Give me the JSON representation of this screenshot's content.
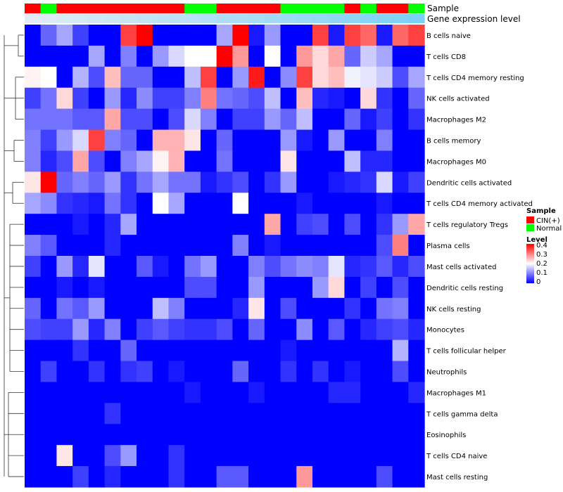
{
  "chart_data": {
    "type": "heatmap",
    "annotation_tracks": {
      "sample_label": "Sample",
      "gene_label": "Gene expression level"
    },
    "row_labels": [
      "B cells naive",
      "T cells CD8",
      "T cells CD4 memory resting",
      "NK cells activated",
      "Macrophages M2",
      "B cells memory",
      "Macrophages M0",
      "Dendritic cells activated",
      "T cells CD4 memory activated",
      "T cells regulatory  Tregs",
      "Plasma cells",
      "Mast cells activated",
      "Dendritic cells resting",
      "NK cells resting",
      "Monocytes",
      "T cells follicular helper",
      "Neutrophils",
      "Macrophages M1",
      "T cells gamma delta",
      "Eosinophils",
      "T cells CD4 naive",
      "Mast cells resting"
    ],
    "sample_groups": [
      "CIN",
      "Normal",
      "CIN",
      "CIN",
      "CIN",
      "CIN",
      "CIN",
      "CIN",
      "CIN",
      "CIN",
      "Normal",
      "Normal",
      "CIN",
      "CIN",
      "CIN",
      "CIN",
      "Normal",
      "Normal",
      "Normal",
      "Normal",
      "CIN",
      "Normal",
      "CIN",
      "CIN",
      "Normal"
    ],
    "gene_expression_level": [
      0.05,
      0.08,
      0.11,
      0.14,
      0.17,
      0.2,
      0.23,
      0.26,
      0.29,
      0.32,
      0.35,
      0.38,
      0.41,
      0.44,
      0.47,
      0.5,
      0.53,
      0.56,
      0.59,
      0.62,
      0.65,
      0.68,
      0.71,
      0.74,
      0.77
    ],
    "values": [
      [
        0.0,
        0.08,
        0.13,
        0.05,
        0.0,
        0.0,
        0.35,
        0.4,
        0.0,
        0.0,
        0.0,
        0.0,
        0.13,
        0.4,
        0.02,
        0.12,
        0.0,
        0.0,
        0.35,
        0.02,
        0.35,
        0.32,
        0.02,
        0.32,
        0.35
      ],
      [
        0.0,
        0.0,
        0.0,
        0.0,
        0.13,
        0.0,
        0.1,
        0.0,
        0.12,
        0.17,
        0.2,
        0.2,
        0.4,
        0.28,
        0.0,
        0.2,
        0.0,
        0.28,
        0.23,
        0.27,
        0.08,
        0.16,
        0.13,
        0.0,
        0.0
      ],
      [
        0.21,
        0.2,
        0.0,
        0.14,
        0.06,
        0.25,
        0.08,
        0.08,
        0.0,
        0.0,
        0.15,
        0.35,
        0.0,
        0.12,
        0.38,
        0.0,
        0.11,
        0.35,
        0.23,
        0.25,
        0.19,
        0.18,
        0.16,
        0.06,
        0.13
      ],
      [
        0.05,
        0.09,
        0.23,
        0.05,
        0.0,
        0.12,
        0.03,
        0.11,
        0.05,
        0.05,
        0.1,
        0.3,
        0.09,
        0.08,
        0.06,
        0.15,
        0.0,
        0.25,
        0.03,
        0.02,
        0.0,
        0.23,
        0.04,
        0.0,
        0.08
      ],
      [
        0.09,
        0.09,
        0.09,
        0.07,
        0.07,
        0.27,
        0.06,
        0.06,
        0.0,
        0.06,
        0.17,
        0.1,
        0.0,
        0.05,
        0.05,
        0.12,
        0.08,
        0.15,
        0.0,
        0.0,
        0.08,
        0.02,
        0.05,
        0.0,
        0.04
      ],
      [
        0.1,
        0.05,
        0.12,
        0.17,
        0.35,
        0.1,
        0.08,
        0.0,
        0.26,
        0.26,
        0.22,
        0.0,
        0.08,
        0.0,
        0.0,
        0.0,
        0.12,
        0.02,
        0.0,
        0.12,
        0.0,
        0.0,
        0.1,
        0.0,
        0.0
      ],
      [
        0.1,
        0.03,
        0.06,
        0.27,
        0.06,
        0.0,
        0.1,
        0.13,
        0.21,
        0.26,
        0.0,
        0.0,
        0.09,
        0.0,
        0.0,
        0.0,
        0.22,
        0.0,
        0.0,
        0.0,
        0.15,
        0.03,
        0.03,
        0.0,
        0.0
      ],
      [
        0.22,
        0.4,
        0.08,
        0.1,
        0.08,
        0.12,
        0.04,
        0.09,
        0.13,
        0.09,
        0.09,
        0.02,
        0.04,
        0.06,
        0.0,
        0.04,
        0.12,
        0.0,
        0.0,
        0.02,
        0.03,
        0.04,
        0.17,
        0.02,
        0.05
      ],
      [
        0.13,
        0.11,
        0.04,
        0.03,
        0.02,
        0.09,
        0.04,
        0.0,
        0.2,
        0.13,
        0.0,
        0.0,
        0.0,
        0.2,
        0.0,
        0.0,
        0.0,
        0.02,
        0.0,
        0.0,
        0.0,
        0.0,
        0.02,
        0.0,
        0.0
      ],
      [
        0.0,
        0.0,
        0.0,
        0.02,
        0.0,
        0.03,
        0.13,
        0.0,
        0.0,
        0.0,
        0.0,
        0.0,
        0.0,
        0.0,
        0.0,
        0.27,
        0.0,
        0.05,
        0.06,
        0.0,
        0.06,
        0.0,
        0.04,
        0.12,
        0.27
      ],
      [
        0.1,
        0.07,
        0.0,
        0.0,
        0.0,
        0.03,
        0.0,
        0.0,
        0.0,
        0.0,
        0.0,
        0.0,
        0.0,
        0.1,
        0.0,
        0.02,
        0.0,
        0.0,
        0.0,
        0.0,
        0.0,
        0.0,
        0.06,
        0.3,
        0.0
      ],
      [
        0.05,
        0.0,
        0.12,
        0.03,
        0.18,
        0.0,
        0.0,
        0.07,
        0.02,
        0.0,
        0.09,
        0.12,
        0.0,
        0.0,
        0.1,
        0.06,
        0.09,
        0.11,
        0.1,
        0.18,
        0.03,
        0.04,
        0.07,
        0.03,
        0.06
      ],
      [
        0.0,
        0.0,
        0.02,
        0.0,
        0.02,
        0.0,
        0.0,
        0.0,
        0.0,
        0.0,
        0.06,
        0.06,
        0.0,
        0.0,
        0.12,
        0.0,
        0.0,
        0.0,
        0.12,
        0.23,
        0.0,
        0.05,
        0.0,
        0.06,
        0.0
      ],
      [
        0.08,
        0.0,
        0.09,
        0.07,
        0.12,
        0.0,
        0.0,
        0.0,
        0.15,
        0.1,
        0.0,
        0.0,
        0.0,
        0.03,
        0.22,
        0.0,
        0.06,
        0.0,
        0.0,
        0.0,
        0.04,
        0.0,
        0.09,
        0.1,
        0.0
      ],
      [
        0.06,
        0.05,
        0.05,
        0.12,
        0.03,
        0.1,
        0.0,
        0.05,
        0.07,
        0.05,
        0.04,
        0.04,
        0.06,
        0.0,
        0.08,
        0.0,
        0.0,
        0.11,
        0.0,
        0.07,
        0.0,
        0.03,
        0.05,
        0.06,
        0.03
      ],
      [
        0.0,
        0.0,
        0.0,
        0.04,
        0.0,
        0.0,
        0.08,
        0.0,
        0.0,
        0.0,
        0.0,
        0.0,
        0.0,
        0.0,
        0.0,
        0.0,
        0.02,
        0.0,
        0.0,
        0.0,
        0.0,
        0.0,
        0.0,
        0.14,
        0.0
      ],
      [
        0.0,
        0.05,
        0.0,
        0.0,
        0.04,
        0.0,
        0.04,
        0.05,
        0.0,
        0.02,
        0.0,
        0.0,
        0.0,
        0.08,
        0.0,
        0.0,
        0.04,
        0.0,
        0.04,
        0.0,
        0.02,
        0.0,
        0.0,
        0.06,
        0.0
      ],
      [
        0.0,
        0.0,
        0.0,
        0.0,
        0.0,
        0.0,
        0.0,
        0.0,
        0.0,
        0.0,
        0.02,
        0.0,
        0.0,
        0.0,
        0.02,
        0.0,
        0.0,
        0.0,
        0.0,
        0.03,
        0.03,
        0.0,
        0.0,
        0.0,
        0.03
      ],
      [
        0.0,
        0.0,
        0.0,
        0.0,
        0.0,
        0.04,
        0.0,
        0.0,
        0.0,
        0.0,
        0.0,
        0.0,
        0.0,
        0.0,
        0.0,
        0.0,
        0.0,
        0.0,
        0.0,
        0.0,
        0.0,
        0.0,
        0.0,
        0.0,
        0.0
      ],
      [
        0.0,
        0.0,
        0.0,
        0.0,
        0.0,
        0.0,
        0.0,
        0.0,
        0.0,
        0.0,
        0.0,
        0.0,
        0.0,
        0.0,
        0.0,
        0.0,
        0.0,
        0.0,
        0.0,
        0.0,
        0.0,
        0.0,
        0.0,
        0.0,
        0.0
      ],
      [
        0.0,
        0.0,
        0.22,
        0.0,
        0.0,
        0.06,
        0.12,
        0.0,
        0.0,
        0.04,
        0.0,
        0.0,
        0.0,
        0.0,
        0.0,
        0.0,
        0.0,
        0.0,
        0.0,
        0.0,
        0.0,
        0.0,
        0.0,
        0.0,
        0.0
      ],
      [
        0.0,
        0.0,
        0.0,
        0.05,
        0.0,
        0.03,
        0.0,
        0.0,
        0.0,
        0.04,
        0.0,
        0.0,
        0.07,
        0.07,
        0.0,
        0.0,
        0.0,
        0.28,
        0.0,
        0.0,
        0.0,
        0.0,
        0.06,
        0.0,
        0.0
      ]
    ],
    "color_scale": {
      "min": 0,
      "mid": 0.2,
      "max": 0.4,
      "low_color": "#0000ff",
      "mid_color": "#ffffff",
      "high_color": "#ff0000"
    },
    "sample_colors": {
      "CIN": "#ff0000",
      "Normal": "#00ff00"
    },
    "legend_sample": {
      "title": "Sample",
      "items": [
        {
          "key": "CIN",
          "label": "CIN(+)"
        },
        {
          "key": "Normal",
          "label": "Normal"
        }
      ]
    },
    "legend_level": {
      "title": "Level",
      "ticks": [
        "0.4",
        "0.3",
        "0.2",
        "0.1",
        "0"
      ]
    },
    "gene_track_colors": {
      "low": "#e8eef6",
      "high": "#5bc8f5"
    }
  }
}
